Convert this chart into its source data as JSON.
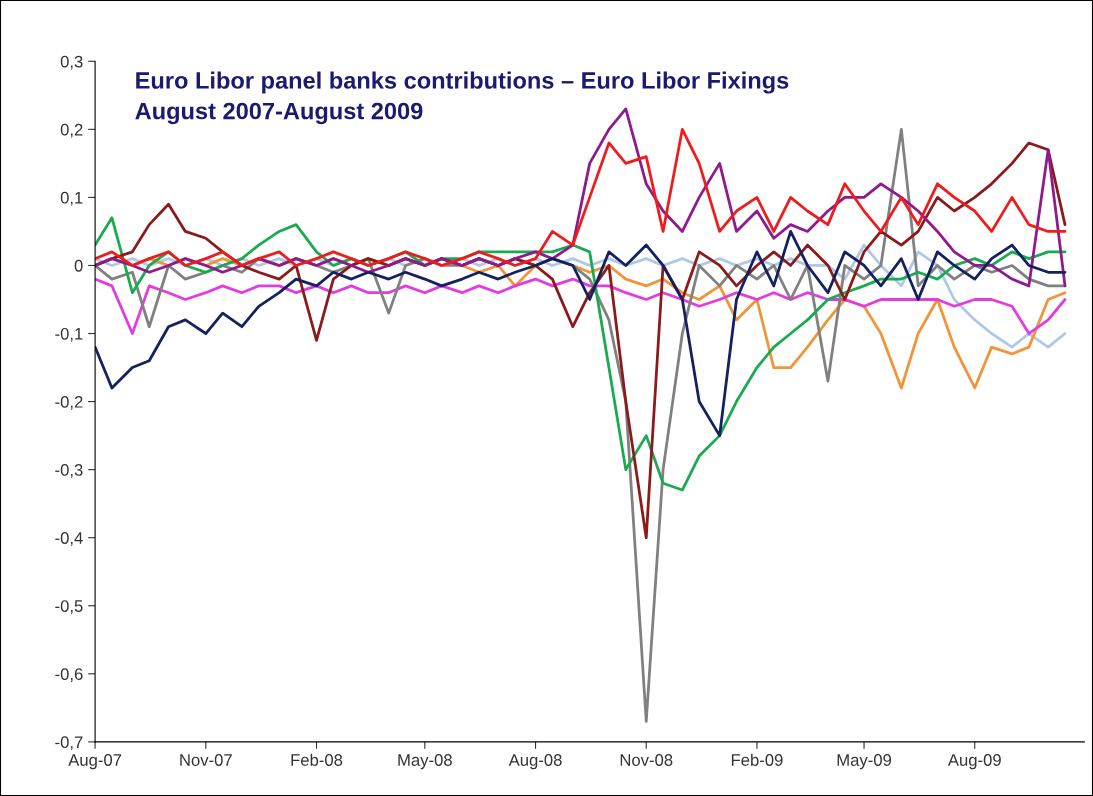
{
  "chart_data": {
    "type": "line",
    "title": "Euro Libor panel banks contributions – Euro Libor Fixings",
    "subtitle": "August 2007-August 2009",
    "x": [
      "2007-08-01",
      "2007-08-15",
      "2007-09-01",
      "2007-09-15",
      "2007-10-01",
      "2007-10-15",
      "2007-11-01",
      "2007-11-15",
      "2007-12-01",
      "2007-12-15",
      "2008-01-01",
      "2008-01-15",
      "2008-02-01",
      "2008-02-15",
      "2008-03-01",
      "2008-03-15",
      "2008-04-01",
      "2008-04-15",
      "2008-05-01",
      "2008-05-15",
      "2008-06-01",
      "2008-06-15",
      "2008-07-01",
      "2008-07-15",
      "2008-08-01",
      "2008-08-15",
      "2008-09-01",
      "2008-09-15",
      "2008-10-01",
      "2008-10-15",
      "2008-11-01",
      "2008-11-15",
      "2008-12-01",
      "2008-12-15",
      "2009-01-01",
      "2009-01-15",
      "2009-02-01",
      "2009-02-15",
      "2009-03-01",
      "2009-03-15",
      "2009-04-01",
      "2009-04-15",
      "2009-05-01",
      "2009-05-15",
      "2009-06-01",
      "2009-06-15",
      "2009-07-01",
      "2009-07-15",
      "2009-08-01",
      "2009-08-15",
      "2009-09-01",
      "2009-09-15",
      "2009-10-01",
      "2009-10-15"
    ],
    "series": [
      {
        "color": "#b0c8e8",
        "values": [
          0.01,
          0.0,
          0.01,
          0.0,
          0.01,
          0.0,
          0.01,
          0.0,
          0.01,
          0.0,
          0.01,
          0.0,
          0.01,
          0.0,
          0.01,
          0.0,
          0.01,
          0.0,
          0.01,
          0.0,
          0.01,
          0.0,
          0.01,
          0.0,
          0.01,
          0.0,
          0.01,
          0.0,
          0.01,
          0.0,
          0.01,
          0.0,
          0.01,
          0.0,
          0.01,
          0.0,
          0.01,
          0.0,
          0.01,
          0.0,
          0.0,
          -0.02,
          0.03,
          0.0,
          -0.03,
          0.02,
          0.0,
          -0.05,
          -0.08,
          -0.1,
          -0.12,
          -0.1,
          -0.12,
          -0.1
        ]
      },
      {
        "color": "#f0953a",
        "values": [
          0.0,
          0.01,
          0.0,
          0.01,
          0.0,
          0.01,
          0.0,
          0.01,
          0.0,
          0.01,
          0.0,
          0.01,
          0.0,
          0.01,
          0.0,
          0.01,
          0.0,
          0.01,
          0.0,
          0.01,
          0.0,
          -0.01,
          0.0,
          -0.03,
          0.0,
          0.01,
          0.0,
          -0.01,
          0.0,
          -0.02,
          -0.03,
          -0.02,
          -0.04,
          -0.05,
          -0.03,
          -0.08,
          -0.05,
          -0.15,
          -0.15,
          -0.12,
          -0.08,
          -0.05,
          -0.06,
          -0.1,
          -0.18,
          -0.1,
          -0.05,
          -0.12,
          -0.18,
          -0.12,
          -0.13,
          -0.12,
          -0.05,
          -0.04
        ]
      },
      {
        "color": "#e23ce0",
        "values": [
          -0.02,
          -0.03,
          -0.1,
          -0.03,
          -0.04,
          -0.05,
          -0.04,
          -0.03,
          -0.04,
          -0.03,
          -0.03,
          -0.04,
          -0.03,
          -0.04,
          -0.03,
          -0.04,
          -0.04,
          -0.03,
          -0.04,
          -0.03,
          -0.04,
          -0.03,
          -0.04,
          -0.03,
          -0.02,
          -0.03,
          -0.02,
          -0.03,
          -0.03,
          -0.04,
          -0.05,
          -0.04,
          -0.05,
          -0.06,
          -0.05,
          -0.04,
          -0.05,
          -0.04,
          -0.05,
          -0.04,
          -0.05,
          -0.05,
          -0.06,
          -0.05,
          -0.05,
          -0.05,
          -0.05,
          -0.06,
          -0.05,
          -0.05,
          -0.06,
          -0.1,
          -0.08,
          -0.05
        ]
      },
      {
        "color": "#808080",
        "values": [
          0.0,
          -0.02,
          -0.01,
          -0.09,
          0.0,
          -0.02,
          -0.01,
          0.0,
          -0.01,
          0.01,
          0.0,
          0.01,
          0.0,
          -0.01,
          0.0,
          0.01,
          -0.07,
          0.0,
          0.01,
          0.0,
          0.0,
          0.01,
          0.0,
          0.01,
          0.0,
          0.01,
          0.0,
          -0.02,
          -0.08,
          -0.2,
          -0.67,
          -0.3,
          -0.1,
          0.0,
          -0.03,
          0.0,
          -0.02,
          0.0,
          -0.05,
          0.0,
          -0.17,
          0.0,
          -0.02,
          0.0,
          0.2,
          -0.03,
          0.0,
          -0.02,
          0.0,
          -0.01,
          0.0,
          -0.02,
          -0.03,
          -0.03
        ]
      },
      {
        "color": "#1aab50",
        "values": [
          0.03,
          0.07,
          -0.04,
          0.0,
          0.02,
          0.0,
          -0.01,
          0.0,
          0.01,
          0.03,
          0.05,
          0.06,
          0.02,
          0.0,
          0.01,
          0.0,
          0.01,
          0.02,
          0.0,
          0.01,
          0.01,
          0.02,
          0.02,
          0.02,
          0.02,
          0.02,
          0.03,
          0.02,
          -0.15,
          -0.3,
          -0.25,
          -0.32,
          -0.33,
          -0.28,
          -0.25,
          -0.2,
          -0.15,
          -0.12,
          -0.1,
          -0.08,
          -0.05,
          -0.04,
          -0.03,
          -0.02,
          -0.02,
          -0.01,
          -0.02,
          0.0,
          0.01,
          0.0,
          0.02,
          0.01,
          0.02,
          0.02
        ]
      },
      {
        "color": "#8b1a1a",
        "values": [
          0.0,
          0.01,
          0.02,
          0.06,
          0.09,
          0.05,
          0.04,
          0.02,
          0.0,
          -0.01,
          -0.02,
          0.0,
          -0.11,
          -0.02,
          0.0,
          0.01,
          0.0,
          0.01,
          0.0,
          0.01,
          0.0,
          0.01,
          0.0,
          0.01,
          0.0,
          -0.02,
          -0.09,
          -0.04,
          0.0,
          -0.2,
          -0.4,
          0.0,
          -0.05,
          0.02,
          0.0,
          -0.03,
          0.0,
          0.02,
          0.0,
          0.03,
          0.0,
          -0.05,
          0.02,
          0.05,
          0.03,
          0.05,
          0.1,
          0.08,
          0.1,
          0.12,
          0.15,
          0.18,
          0.17,
          0.06
        ]
      },
      {
        "color": "#8e1a8e",
        "values": [
          0.0,
          0.01,
          0.0,
          -0.01,
          0.0,
          0.01,
          0.0,
          -0.01,
          0.0,
          0.01,
          0.0,
          0.01,
          0.0,
          0.01,
          0.0,
          -0.01,
          0.0,
          0.01,
          0.0,
          0.01,
          0.0,
          0.01,
          0.0,
          0.01,
          0.02,
          0.01,
          0.03,
          0.15,
          0.2,
          0.23,
          0.12,
          0.08,
          0.05,
          0.1,
          0.15,
          0.05,
          0.08,
          0.04,
          0.06,
          0.05,
          0.08,
          0.1,
          0.1,
          0.12,
          0.1,
          0.08,
          0.05,
          0.02,
          0.0,
          0.0,
          -0.02,
          -0.03,
          0.17,
          -0.03
        ]
      },
      {
        "color": "#ee1c1c",
        "values": [
          0.01,
          0.02,
          0.0,
          0.01,
          0.02,
          0.0,
          0.01,
          0.02,
          0.0,
          0.01,
          0.02,
          0.0,
          0.01,
          0.02,
          0.01,
          0.0,
          0.01,
          0.02,
          0.01,
          0.0,
          0.01,
          0.02,
          0.01,
          0.0,
          0.01,
          0.05,
          0.03,
          0.1,
          0.18,
          0.15,
          0.16,
          0.05,
          0.2,
          0.15,
          0.05,
          0.08,
          0.1,
          0.05,
          0.1,
          0.08,
          0.06,
          0.12,
          0.08,
          0.05,
          0.1,
          0.06,
          0.12,
          0.1,
          0.08,
          0.05,
          0.1,
          0.06,
          0.05,
          0.05
        ]
      },
      {
        "color": "#142060",
        "values": [
          -0.12,
          -0.18,
          -0.15,
          -0.14,
          -0.09,
          -0.08,
          -0.1,
          -0.07,
          -0.09,
          -0.06,
          -0.04,
          -0.02,
          -0.03,
          -0.01,
          -0.02,
          -0.01,
          -0.02,
          -0.01,
          -0.02,
          -0.03,
          -0.02,
          -0.01,
          -0.02,
          -0.01,
          0.0,
          0.01,
          0.0,
          -0.05,
          0.02,
          0.0,
          0.03,
          0.0,
          -0.05,
          -0.2,
          -0.25,
          -0.05,
          0.02,
          -0.03,
          0.05,
          0.0,
          -0.04,
          0.02,
          0.0,
          -0.03,
          0.01,
          -0.05,
          0.02,
          0.0,
          -0.02,
          0.01,
          0.03,
          0.0,
          -0.01,
          -0.01
        ]
      }
    ],
    "xlim": [
      "2007-08-01",
      "2009-10-31"
    ],
    "xticks": [
      {
        "value": "2007-08-01",
        "label": "Aug-07"
      },
      {
        "value": "2007-11-01",
        "label": "Nov-07"
      },
      {
        "value": "2008-02-01",
        "label": "Feb-08"
      },
      {
        "value": "2008-05-01",
        "label": "May-08"
      },
      {
        "value": "2008-08-01",
        "label": "Aug-08"
      },
      {
        "value": "2008-11-01",
        "label": "Nov-08"
      },
      {
        "value": "2009-02-01",
        "label": "Feb-09"
      },
      {
        "value": "2009-05-01",
        "label": "May-09"
      },
      {
        "value": "2009-08-01",
        "label": "Aug-09"
      }
    ],
    "ylim": [
      -0.7,
      0.3
    ],
    "yticks": [
      {
        "value": 0.3,
        "label": "0,3"
      },
      {
        "value": 0.2,
        "label": "0,2"
      },
      {
        "value": 0.1,
        "label": "0,1"
      },
      0,
      {
        "value": -0.1,
        "label": "-0,1"
      },
      {
        "value": -0.2,
        "label": "-0,2"
      },
      {
        "value": -0.3,
        "label": "-0,3"
      },
      {
        "value": -0.4,
        "label": "-0,4"
      },
      {
        "value": -0.5,
        "label": "-0,5"
      },
      {
        "value": -0.6,
        "label": "-0,6"
      },
      {
        "value": -0.7,
        "label": "-0,7"
      }
    ],
    "grid": false,
    "legend": false,
    "line_style": "solid",
    "marker": "none"
  }
}
